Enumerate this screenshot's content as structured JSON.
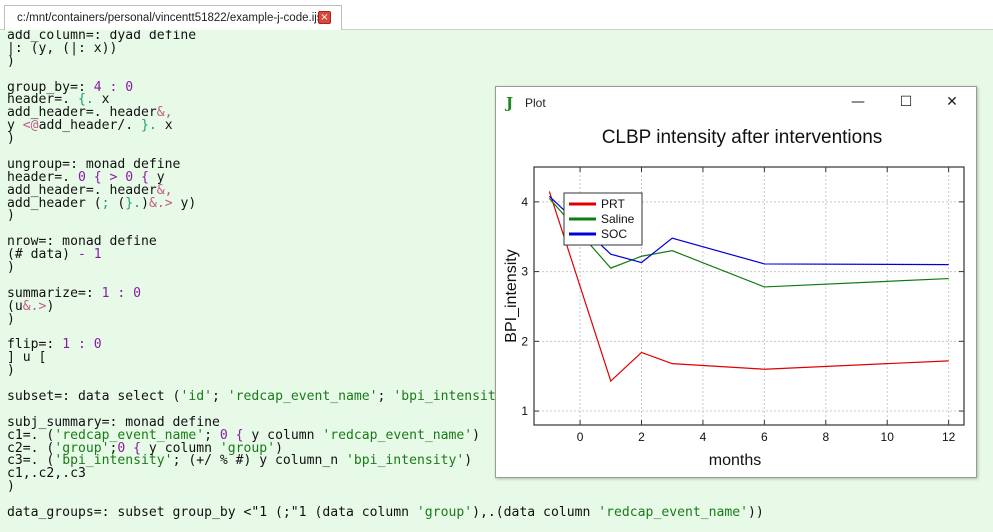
{
  "tab": {
    "title": "c:/mnt/containers/personal/vincentt51822/example-j-code.ijs",
    "close_glyph": "×"
  },
  "code_lines": [
    [
      [
        "add_column=: dyad define",
        ""
      ]
    ],
    [
      [
        "|: (y, (|: x))",
        ""
      ]
    ],
    [
      [
        ")",
        ""
      ]
    ],
    [
      [
        "",
        ""
      ]
    ],
    [
      [
        "group_by=: ",
        ""
      ],
      [
        "4 : 0",
        "p"
      ]
    ],
    [
      [
        "header=. ",
        ""
      ],
      [
        "{.",
        "g"
      ],
      [
        " x",
        ""
      ]
    ],
    [
      [
        "add_header=. header",
        ""
      ],
      [
        "&,",
        "o"
      ]
    ],
    [
      [
        "y ",
        ""
      ],
      [
        "<@",
        "o"
      ],
      [
        "add_header/. ",
        ""
      ],
      [
        "}.",
        "g"
      ],
      [
        " x",
        ""
      ]
    ],
    [
      [
        ")",
        ""
      ]
    ],
    [
      [
        "",
        ""
      ]
    ],
    [
      [
        "ungroup=: monad define",
        ""
      ]
    ],
    [
      [
        "header=. ",
        ""
      ],
      [
        "0 { > 0 {",
        "p"
      ],
      [
        " y",
        ""
      ]
    ],
    [
      [
        "add_header=. header",
        ""
      ],
      [
        "&,",
        "o"
      ]
    ],
    [
      [
        "add_header (",
        ""
      ],
      [
        ";",
        "g"
      ],
      [
        " (",
        ""
      ],
      [
        "}.",
        "g"
      ],
      [
        ")",
        ""
      ],
      [
        "&.>",
        "o"
      ],
      [
        " y)",
        ""
      ]
    ],
    [
      [
        ")",
        ""
      ]
    ],
    [
      [
        "",
        ""
      ]
    ],
    [
      [
        "nrow=: monad define",
        ""
      ]
    ],
    [
      [
        "(# data) ",
        ""
      ],
      [
        "- 1",
        "p"
      ]
    ],
    [
      [
        ")",
        ""
      ]
    ],
    [
      [
        "",
        ""
      ]
    ],
    [
      [
        "summarize=: ",
        ""
      ],
      [
        "1 : 0",
        "p"
      ]
    ],
    [
      [
        "(u",
        ""
      ],
      [
        "&.>",
        "o"
      ],
      [
        ")",
        ""
      ]
    ],
    [
      [
        ")",
        ""
      ]
    ],
    [
      [
        "",
        ""
      ]
    ],
    [
      [
        "flip=: ",
        ""
      ],
      [
        "1 : 0",
        "p"
      ]
    ],
    [
      [
        "] u [",
        ""
      ]
    ],
    [
      [
        ")",
        ""
      ]
    ],
    [
      [
        "",
        ""
      ]
    ],
    [
      [
        "subset=: data select (",
        ""
      ],
      [
        "'id'",
        "s"
      ],
      [
        "; ",
        ""
      ],
      [
        "'redcap_event_name'",
        "s"
      ],
      [
        "; ",
        ""
      ],
      [
        "'bpi_intensity'",
        "s"
      ],
      [
        ")",
        ""
      ]
    ],
    [
      [
        "",
        ""
      ]
    ],
    [
      [
        "subj_summary=: monad define",
        ""
      ]
    ],
    [
      [
        "c1=. (",
        ""
      ],
      [
        "'redcap_event_name'",
        "s"
      ],
      [
        "; ",
        ""
      ],
      [
        "0 {",
        "p"
      ],
      [
        " y column ",
        ""
      ],
      [
        "'redcap_event_name'",
        "s"
      ],
      [
        ")",
        ""
      ]
    ],
    [
      [
        "c2=. (",
        ""
      ],
      [
        "'group'",
        "s"
      ],
      [
        ";",
        ""
      ],
      [
        "0 {",
        "p"
      ],
      [
        " y column ",
        ""
      ],
      [
        "'group'",
        "s"
      ],
      [
        ")",
        ""
      ]
    ],
    [
      [
        "c3=. (",
        ""
      ],
      [
        "'bpi_intensity'",
        "s"
      ],
      [
        "; (+/ % #) y column_n ",
        ""
      ],
      [
        "'bpi_intensity'",
        "s"
      ],
      [
        ")",
        ""
      ]
    ],
    [
      [
        "c1,.c2,.c3",
        ""
      ]
    ],
    [
      [
        ")",
        ""
      ]
    ],
    [
      [
        "",
        ""
      ]
    ],
    [
      [
        "data_groups=: subset group_by <\"1 (;\"1 (data column ",
        ""
      ],
      [
        "'group'",
        "s"
      ],
      [
        "),.(data column ",
        ""
      ],
      [
        "'redcap_event_name'",
        "s"
      ],
      [
        "))",
        ""
      ]
    ]
  ],
  "plot_window": {
    "title": "Plot",
    "logo": "J",
    "minimize": "—",
    "maximize": "☐",
    "close": "✕"
  },
  "chart_data": {
    "type": "line",
    "title": "CLBP intensity after interventions",
    "xlabel": "months",
    "ylabel": "BPI_intensity",
    "xlim": [
      -1.5,
      12.5
    ],
    "ylim": [
      0.8,
      4.5
    ],
    "xticks": [
      0,
      2,
      4,
      6,
      8,
      10,
      12
    ],
    "yticks": [
      1,
      2,
      3,
      4
    ],
    "grid": true,
    "legend_position": "top-left",
    "series": [
      {
        "name": "PRT",
        "color": "#e00000",
        "x": [
          -1,
          1,
          2,
          3,
          6,
          12
        ],
        "y": [
          4.15,
          1.43,
          1.84,
          1.68,
          1.6,
          1.72
        ]
      },
      {
        "name": "Saline",
        "color": "#127a12",
        "x": [
          -1,
          1,
          2,
          3,
          6,
          12
        ],
        "y": [
          4.05,
          3.05,
          3.22,
          3.3,
          2.78,
          2.9
        ]
      },
      {
        "name": "SOC",
        "color": "#0000dd",
        "x": [
          -1,
          1,
          2,
          3,
          6,
          12
        ],
        "y": [
          4.08,
          3.25,
          3.13,
          3.48,
          3.11,
          3.1
        ]
      }
    ]
  }
}
